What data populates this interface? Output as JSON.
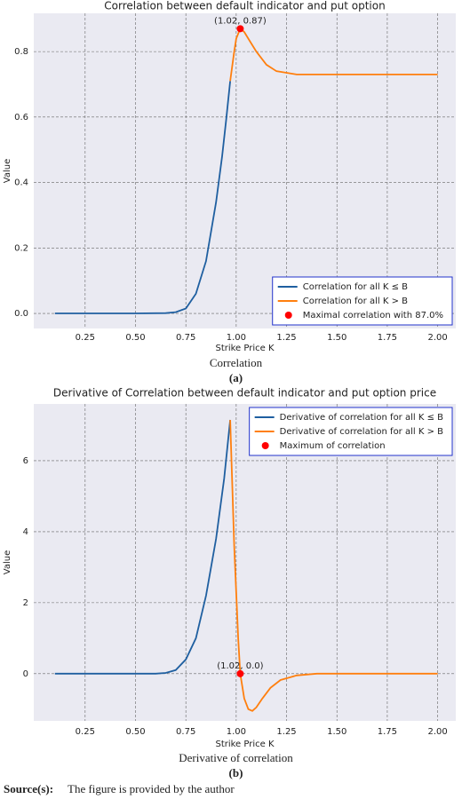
{
  "chart_data": [
    {
      "type": "line",
      "title": "Correlation between default indicator and put option",
      "x_label": "Strike Price K",
      "y_label": "Value",
      "caption": "Correlation",
      "label": "(a)",
      "xlim": [
        -0.005,
        2.09
      ],
      "ylim": [
        -0.046,
        0.917
      ],
      "xticks": [
        0.25,
        {
          "value": 0.5,
          "label": "0.50"
        },
        0.75,
        {
          "value": 1,
          "label": "1.00"
        },
        1.25,
        {
          "value": 1.5,
          "label": "1.50"
        },
        1.75,
        {
          "value": 2,
          "label": "2.00"
        }
      ],
      "yticks": [
        {
          "value": 0,
          "label": "0.0"
        },
        0.2,
        0.4,
        0.6,
        0.8
      ],
      "grid": true,
      "legend": "lower right",
      "series": [
        {
          "name": "Correlation for all K ≤ B",
          "color": "#1f5fa0",
          "x": [
            0.1,
            0.5,
            0.65,
            0.7,
            0.75,
            0.8,
            0.85,
            0.9,
            0.93,
            0.95,
            0.97
          ],
          "values": [
            0,
            0,
            0.001,
            0.004,
            0.015,
            0.06,
            0.16,
            0.34,
            0.48,
            0.59,
            0.71
          ]
        },
        {
          "name": "Correlation for all K > B",
          "color": "#ff7f0e",
          "x": [
            0.97,
            0.99,
            1.0,
            1.02,
            1.04,
            1.07,
            1.1,
            1.15,
            1.2,
            1.3,
            1.5,
            2.0
          ],
          "values": [
            0.71,
            0.8,
            0.84,
            0.87,
            0.86,
            0.83,
            0.8,
            0.76,
            0.74,
            0.73,
            0.73,
            0.73
          ]
        },
        {
          "name": "Maximal correlation with 87.0%",
          "type": "scatter",
          "color": "#ff0000",
          "x": [
            1.02
          ],
          "values": [
            0.87
          ],
          "value_labels": [
            "(1.02, 0.87)"
          ]
        }
      ]
    },
    {
      "type": "line",
      "title": "Derivative of Correlation between default indicator and put option price",
      "x_label": "Strike Price K",
      "y_label": "Value",
      "caption": "Derivative of correlation",
      "label": "(b)",
      "xlim": [
        -0.005,
        2.09
      ],
      "ylim": [
        -1.33,
        7.6
      ],
      "xticks": [
        0.25,
        {
          "value": 0.5,
          "label": "0.50"
        },
        0.75,
        {
          "value": 1,
          "label": "1.00"
        },
        1.25,
        {
          "value": 1.5,
          "label": "1.50"
        },
        1.75,
        {
          "value": 2,
          "label": "2.00"
        }
      ],
      "yticks": [
        0,
        2,
        4,
        6
      ],
      "grid": true,
      "legend": "upper right",
      "series": [
        {
          "name": "Derivative of correlation for all K ≤ B",
          "color": "#1f5fa0",
          "x": [
            0.1,
            0.6,
            0.65,
            0.7,
            0.75,
            0.8,
            0.85,
            0.9,
            0.94,
            0.97
          ],
          "values": [
            0,
            0,
            0.02,
            0.1,
            0.4,
            1.0,
            2.2,
            3.8,
            5.5,
            7.15
          ]
        },
        {
          "name": "Derivative of correlation for all K > B",
          "color": "#ff7f0e",
          "x": [
            0.97,
            0.99,
            1.01,
            1.02,
            1.04,
            1.06,
            1.08,
            1.1,
            1.13,
            1.17,
            1.22,
            1.3,
            1.4,
            2.0
          ],
          "values": [
            7.15,
            3.6,
            1.0,
            0,
            -0.7,
            -1.0,
            -1.05,
            -0.95,
            -0.7,
            -0.4,
            -0.18,
            -0.05,
            0,
            0
          ]
        },
        {
          "name": "Maximum of correlation",
          "type": "scatter",
          "color": "#ff0000",
          "x": [
            1.02
          ],
          "values": [
            0.0
          ],
          "value_labels": [
            "(1.02, 0.0)"
          ]
        }
      ]
    }
  ],
  "source": {
    "label": "Source(s):",
    "text": "The figure is provided by the author"
  }
}
